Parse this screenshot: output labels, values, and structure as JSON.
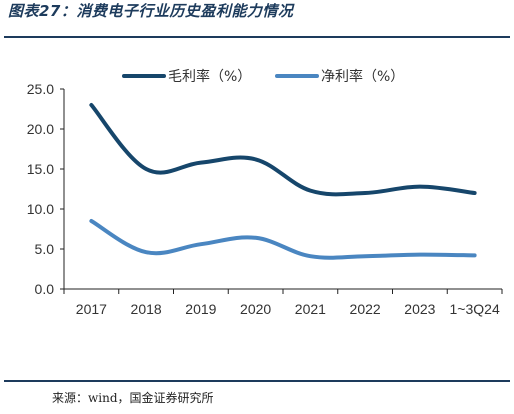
{
  "figure": {
    "title": "图表27：消费电子行业历史盈利能力情况",
    "source": "来源：wind，国金证券研究所"
  },
  "colors": {
    "frame": "#1d3b5c",
    "axis": "#222222"
  },
  "chart_data": {
    "type": "line",
    "title": "",
    "xlabel": "",
    "ylabel": "",
    "categories": [
      "2017",
      "2018",
      "2019",
      "2020",
      "2021",
      "2022",
      "2023",
      "1~3Q24"
    ],
    "ylim": [
      0,
      25
    ],
    "yticks": [
      "0.0",
      "5.0",
      "10.0",
      "15.0",
      "20.0",
      "25.0"
    ],
    "grid": false,
    "legend_position": "top",
    "series": [
      {
        "name": "毛利率（%）",
        "color": "#16466b",
        "values": [
          23.0,
          15.0,
          15.8,
          16.2,
          12.3,
          12.0,
          12.8,
          12.0
        ]
      },
      {
        "name": "净利率（%）",
        "color": "#4a86c1",
        "values": [
          8.5,
          4.6,
          5.6,
          6.4,
          4.1,
          4.1,
          4.3,
          4.2
        ]
      }
    ]
  }
}
